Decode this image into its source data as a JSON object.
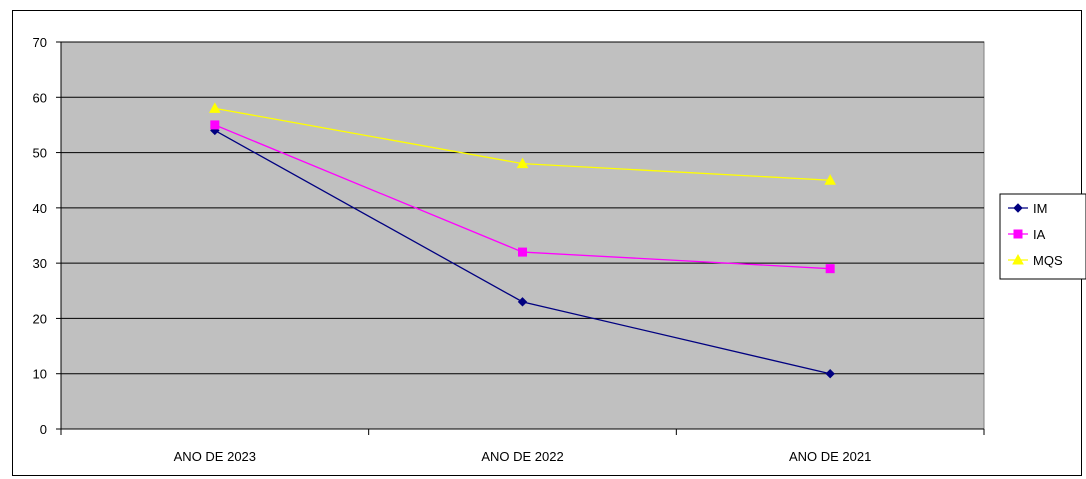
{
  "chart_data": {
    "type": "line",
    "title": "",
    "xlabel": "",
    "ylabel": "",
    "categories": [
      "ANO DE 2023",
      "ANO DE 2022",
      "ANO DE 2021"
    ],
    "ylim": [
      0,
      70
    ],
    "yticks": [
      0,
      10,
      20,
      30,
      40,
      50,
      60,
      70
    ],
    "grid": true,
    "plot_background": "#c0c0c0",
    "legend_position": "right",
    "series": [
      {
        "name": "IM",
        "values": [
          54,
          23,
          10
        ],
        "color": "#000080",
        "marker": "diamond"
      },
      {
        "name": "IA",
        "values": [
          55,
          32,
          29
        ],
        "color": "#ff00ff",
        "marker": "square"
      },
      {
        "name": "MQS",
        "values": [
          58,
          48,
          45
        ],
        "color": "#ffff00",
        "marker": "triangle"
      }
    ]
  }
}
